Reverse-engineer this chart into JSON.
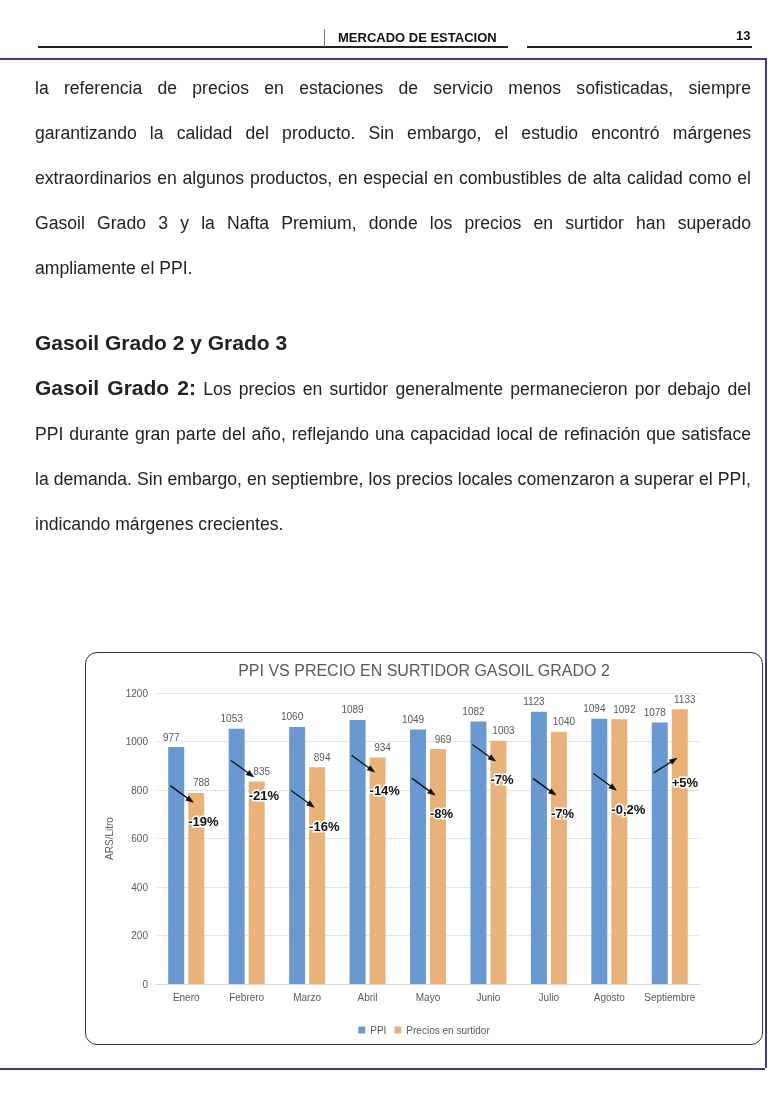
{
  "chart_data": {
    "type": "bar",
    "title": "PPI VS PRECIO EN SURTIDOR GASOIL GRADO 2",
    "ylabel": "ARS/Litro",
    "categories": [
      "Enero",
      "Febrero",
      "Marzo",
      "Abril",
      "Mayo",
      "Junio",
      "Julio",
      "Agosto",
      "Septiembre"
    ],
    "series": [
      {
        "name": "PPI",
        "color": "#6a98d0",
        "values": [
          977,
          1053,
          1060,
          1089,
          1049,
          1082,
          1123,
          1094,
          1078
        ]
      },
      {
        "name": "Precios en surtidor",
        "color": "#e8b27a",
        "values": [
          788,
          835,
          894,
          934,
          969,
          1003,
          1040,
          1092,
          1133
        ]
      }
    ],
    "ylim": [
      0,
      1200
    ],
    "yticks": [
      0,
      200,
      400,
      600,
      800,
      1000,
      1200
    ],
    "grid": "y",
    "legend": "bottom",
    "data_labels": true,
    "annotations": [
      "MERCADO DE ESTACION",
      "13",
      "la referencia de precios en estaciones de servicio menos sofisticadas, siempre garantizando la calidad del producto. Sin embargo, el estudio encontró márgenes extraordinarios en algunos productos, en especial en combustibles de alta calidad como el Gasoil Grado 3 y la Nafta Premium, donde los precios en surtidor han superado ampliamente el PPI.",
      "Gasoil Grado 2 y Grado 3",
      "Gasoil Grado 2:",
      "Los precios en surtidor generalmente permanecieron por debajo del PPI durante gran parte del año, reflejando una capacidad local de refinación que satisface la demanda. Sin embargo, en septiembre, los precios locales comenzaron a superar el PPI, indicando márgenes crecientes.",
      {
        "text": "-19%",
        "x": "Enero",
        "y": 620
      },
      {
        "text": "-21%",
        "x": "Febrero",
        "y": 725
      },
      {
        "text": "-16%",
        "x": "Marzo",
        "y": 600
      },
      {
        "text": "-14%",
        "x": "Abril",
        "y": 745
      },
      {
        "text": "-8%",
        "x": "Mayo",
        "y": 650
      },
      {
        "text": "-7%",
        "x": "Junio",
        "y": 790
      },
      {
        "text": "-7%",
        "x": "Julio",
        "y": 650
      },
      {
        "text": "-0,2%",
        "x": "Agosto",
        "y": 670
      },
      {
        "text": "+5%",
        "x": "Septiembre",
        "y": 780
      }
    ]
  }
}
